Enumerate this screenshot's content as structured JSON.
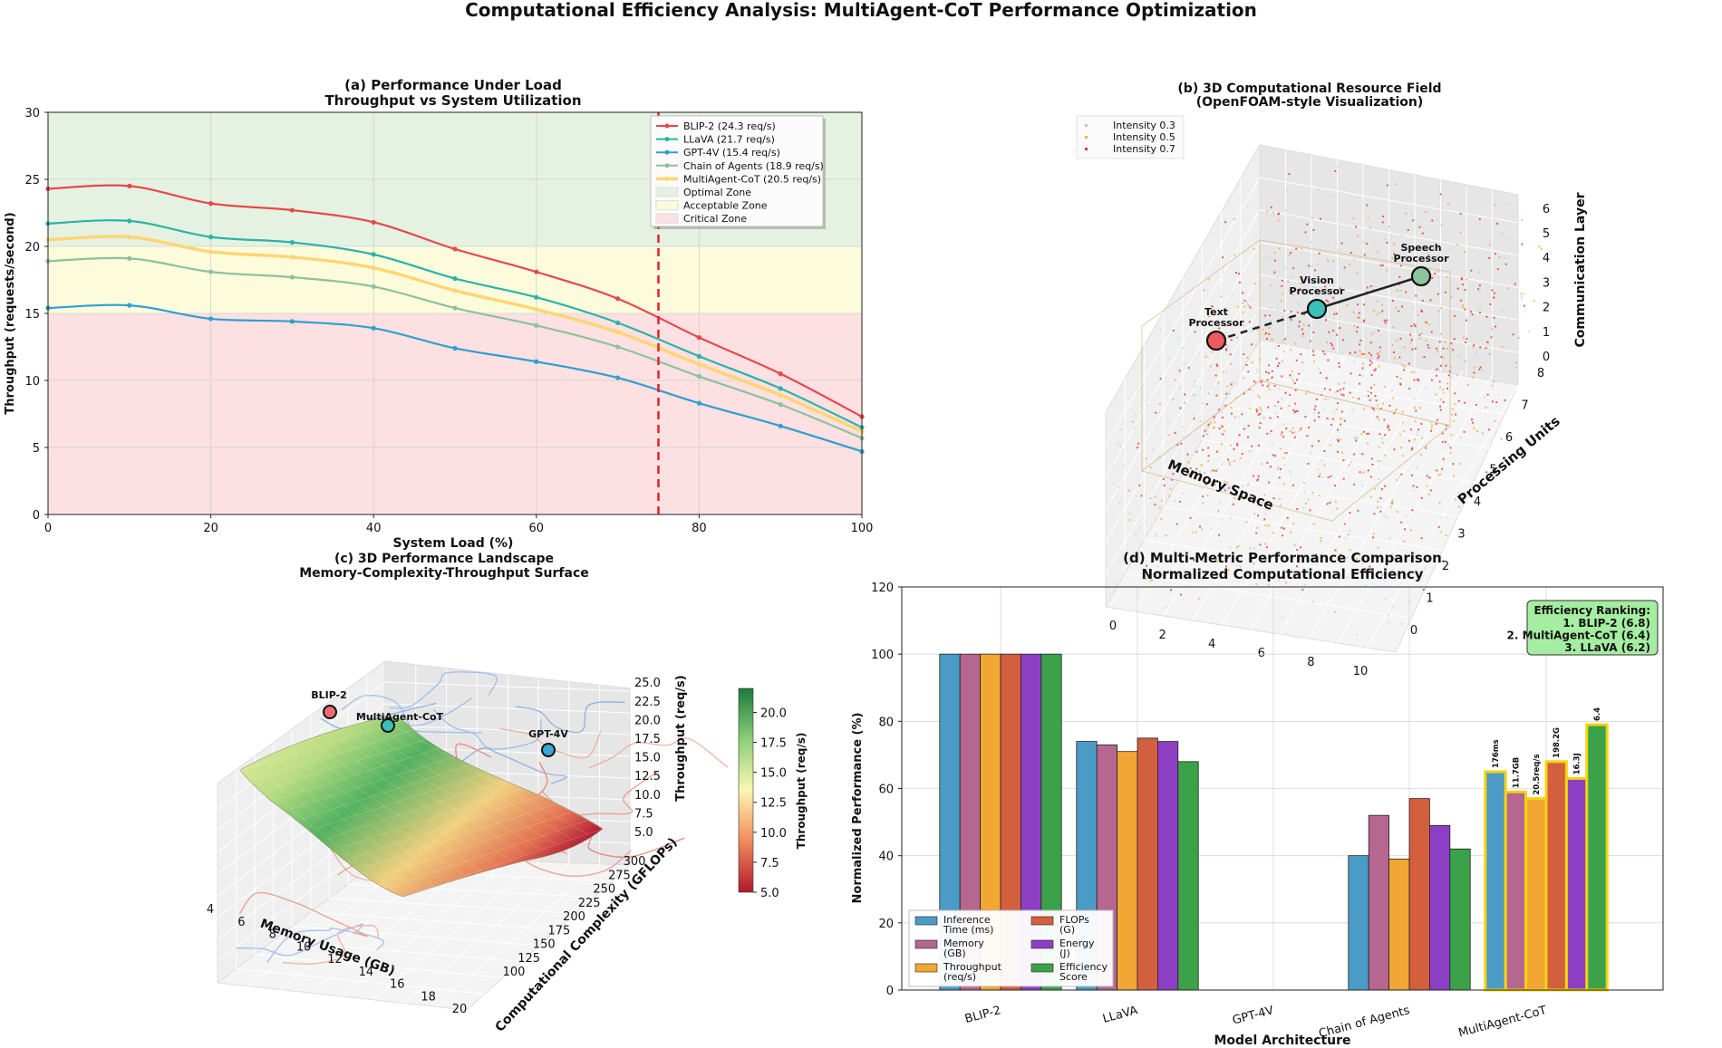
{
  "figure": {
    "title": "Computational Efficiency Analysis: MultiAgent-CoT Performance Optimization"
  },
  "chart_data": [
    {
      "id": "a",
      "type": "line",
      "title": "(a) Performance Under Load",
      "subtitle": "Throughput vs System Utilization",
      "xlabel": "System Load (%)",
      "ylabel": "Throughput (requests/second)",
      "xlim": [
        0,
        100
      ],
      "ylim": [
        0,
        30
      ],
      "xticks": [
        0,
        20,
        40,
        60,
        80,
        100
      ],
      "yticks": [
        0,
        5,
        10,
        15,
        20,
        25,
        30
      ],
      "grid": true,
      "legend_position": "top-right",
      "x": [
        0,
        10,
        20,
        30,
        40,
        50,
        60,
        70,
        80,
        90,
        100
      ],
      "series": [
        {
          "name": "BLIP-2 (24.3 req/s)",
          "color": "#e8474c",
          "values": [
            24.3,
            24.5,
            23.2,
            22.7,
            21.8,
            19.8,
            18.1,
            16.1,
            13.2,
            10.5,
            7.3
          ]
        },
        {
          "name": "LLaVA (21.7 req/s)",
          "color": "#2ab3a8",
          "values": [
            21.7,
            21.9,
            20.7,
            20.3,
            19.4,
            17.6,
            16.2,
            14.3,
            11.8,
            9.4,
            6.5
          ]
        },
        {
          "name": "GPT-4V (15.4 req/s)",
          "color": "#2e9fd0",
          "values": [
            15.4,
            15.6,
            14.6,
            14.4,
            13.9,
            12.4,
            11.4,
            10.2,
            8.3,
            6.6,
            4.7
          ]
        },
        {
          "name": "Chain of Agents (18.9 req/s)",
          "color": "#8cc1a0",
          "values": [
            18.9,
            19.1,
            18.1,
            17.7,
            17.0,
            15.4,
            14.1,
            12.5,
            10.3,
            8.2,
            5.7
          ]
        },
        {
          "name": "MultiAgent-CoT (20.5 req/s)",
          "color": "#ffd573",
          "values": [
            20.5,
            20.7,
            19.6,
            19.2,
            18.4,
            16.7,
            15.3,
            13.6,
            11.2,
            8.9,
            6.2
          ]
        }
      ],
      "zones": [
        {
          "name": "Optimal Zone",
          "from": 20,
          "to": 30,
          "color": "#e5f2e1"
        },
        {
          "name": "Acceptable Zone",
          "from": 15,
          "to": 20,
          "color": "#fcfcdc"
        },
        {
          "name": "Critical Zone",
          "from": 0,
          "to": 15,
          "color": "#fde0e2"
        }
      ],
      "vline": {
        "x": 75,
        "color": "#e0242a"
      }
    },
    {
      "id": "b",
      "type": "scatter",
      "title": "(b) 3D Computational Resource Field",
      "subtitle": "(OpenFOAM-style Visualization)",
      "xlabel": "Memory Space",
      "ylabel": "Processing Units",
      "zlabel": "Communication Layer",
      "xticks": [
        0,
        2,
        4,
        6,
        8,
        10
      ],
      "yticks": [
        0,
        1,
        2,
        3,
        4,
        5,
        6,
        7,
        8
      ],
      "zticks": [
        0,
        1,
        2,
        3,
        4,
        5,
        6
      ],
      "legend_position": "top-left",
      "legend": [
        {
          "name": "Intensity 0.3",
          "color": "#9fd0ea"
        },
        {
          "name": "Intensity 0.5",
          "color": "#f0b33a"
        },
        {
          "name": "Intensity 0.7",
          "color": "#e8333d"
        }
      ],
      "nodes": [
        {
          "name": "Text\nProcessor",
          "label_lines": [
            "Text",
            "Processor"
          ],
          "color": "#ee5a5f"
        },
        {
          "name": "Vision\nProcessor",
          "label_lines": [
            "Vision",
            "Processor"
          ],
          "color": "#3cbfb8"
        },
        {
          "name": "Speech\nProcessor",
          "label_lines": [
            "Speech",
            "Processor"
          ],
          "color": "#8cc49c"
        }
      ]
    },
    {
      "id": "c",
      "type": "surface",
      "title": "(c) 3D Performance Landscape",
      "subtitle": "Memory-Complexity-Throughput Surface",
      "xlabel": "Memory Usage (GB)",
      "ylabel": "Computational Complexity (GFLOPs)",
      "zlabel": "Throughput (req/s)",
      "xticks": [
        4,
        6,
        8,
        10,
        12,
        14,
        16,
        18,
        20
      ],
      "yticks": [
        100,
        125,
        150,
        175,
        200,
        225,
        250,
        275,
        300
      ],
      "zticks": [
        "5.0",
        "7.5",
        "10.0",
        "12.5",
        "15.0",
        "17.5",
        "20.0",
        "22.5",
        "25.0"
      ],
      "colorbar": {
        "label": "Throughput (req/s)",
        "ticks": [
          "5.0",
          "7.5",
          "10.0",
          "12.5",
          "15.0",
          "17.5",
          "20.0"
        ],
        "range": [
          5,
          22
        ]
      },
      "points": [
        {
          "name": "BLIP-2",
          "color": "#ee6a6e"
        },
        {
          "name": "MultiAgent-CoT",
          "color": "#3cbfb8"
        },
        {
          "name": "GPT-4V",
          "color": "#3aa6d6"
        }
      ]
    },
    {
      "id": "d",
      "type": "bar",
      "title": "(d) Multi-Metric Performance Comparison",
      "subtitle": "Normalized Computational Efficiency",
      "xlabel": "Model Architecture",
      "ylabel": "Normalized Performance (%)",
      "ylim": [
        0,
        120
      ],
      "yticks": [
        0,
        20,
        40,
        60,
        80,
        100,
        120
      ],
      "grid": true,
      "legend_position": "lower-left",
      "categories": [
        "BLIP-2",
        "LLaVA",
        "GPT-4V",
        "Chain of Agents",
        "MultiAgent-CoT"
      ],
      "series": [
        {
          "name": "Inference\nTime (ms)",
          "legend_lines": [
            "Inference",
            "Time (ms)"
          ],
          "color": "#4a9cc6",
          "values": [
            100,
            74,
            0,
            40,
            65
          ]
        },
        {
          "name": "Memory\n(GB)",
          "legend_lines": [
            "Memory",
            "(GB)"
          ],
          "color": "#b5678f",
          "values": [
            100,
            73,
            0,
            52,
            59
          ]
        },
        {
          "name": "Throughput\n(req/s)",
          "legend_lines": [
            "Throughput",
            "(req/s)"
          ],
          "color": "#f2a735",
          "values": [
            100,
            71,
            0,
            39,
            57
          ]
        },
        {
          "name": "FLOPs\n(G)",
          "legend_lines": [
            "FLOPs",
            "(G)"
          ],
          "color": "#d35f3f",
          "values": [
            100,
            75,
            0,
            57,
            68
          ]
        },
        {
          "name": "Energy\n(J)",
          "legend_lines": [
            "Energy",
            "(J)"
          ],
          "color": "#8d3fc4",
          "values": [
            100,
            74,
            0,
            49,
            63
          ]
        },
        {
          "name": "Efficiency\nScore",
          "legend_lines": [
            "Efficiency",
            "Score"
          ],
          "color": "#3ba24a",
          "values": [
            100,
            68,
            0,
            42,
            79
          ]
        }
      ],
      "highlight_category": "MultiAgent-CoT",
      "highlight_color": "#f5d30f",
      "bar_labels": [
        "176ms",
        "11.7GB",
        "20.5req/s",
        "198.2G",
        "16.3J",
        "6.4"
      ],
      "ranking_box": {
        "title": "Efficiency Ranking:",
        "lines": [
          "1. BLIP-2 (6.8)",
          "2. MultiAgent-CoT (6.4)",
          "3. LLaVA (6.2)"
        ]
      }
    }
  ]
}
